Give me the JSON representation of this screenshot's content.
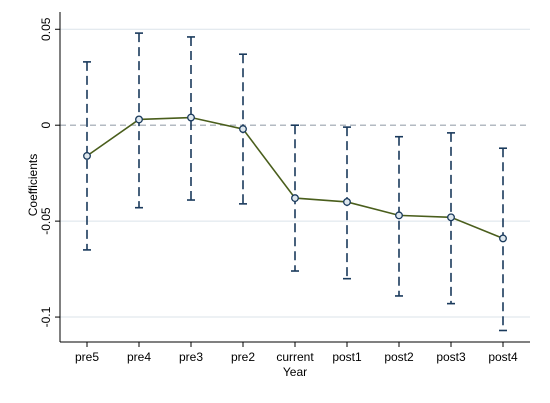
{
  "chart_data": {
    "type": "line",
    "title": "",
    "xlabel": "Year",
    "ylabel": "Coefficients",
    "categories": [
      "pre5",
      "pre4",
      "pre3",
      "pre2",
      "current",
      "post1",
      "post2",
      "post3",
      "post4"
    ],
    "series": [
      {
        "values": [
          -0.016,
          0.003,
          0.004,
          -0.002,
          -0.038,
          -0.04,
          -0.047,
          -0.048,
          -0.059
        ],
        "ci_upper": [
          0.033,
          0.048,
          0.046,
          0.037,
          0.0,
          -0.001,
          -0.006,
          -0.004,
          -0.012
        ],
        "ci_lower": [
          -0.065,
          -0.043,
          -0.039,
          -0.041,
          -0.076,
          -0.08,
          -0.089,
          -0.093,
          -0.107
        ]
      }
    ],
    "yticks": [
      0.05,
      0,
      -0.05,
      -0.1
    ],
    "ytick_labels": [
      "0.05",
      "0",
      "-0.05",
      "-0.1"
    ],
    "ylim": [
      -0.113,
      0.059
    ],
    "reference_line": 0,
    "grid": "horizontal",
    "colors": {
      "line": "#4a5e1c",
      "marker_edge": "#1a3a5c",
      "ci": "#1a3a5c",
      "grid": "#dbe3ea",
      "reference": "#9aa3ad",
      "axis": "#000000"
    }
  }
}
